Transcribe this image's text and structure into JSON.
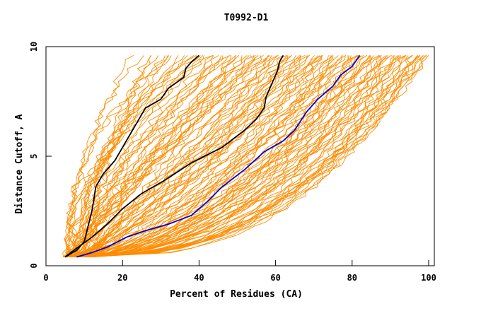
{
  "chart_data": {
    "type": "line",
    "title": "T0992-D1",
    "xlabel": "Percent of Residues (CA)",
    "ylabel": "Distance Cutoff, A",
    "xlim": [
      0,
      100
    ],
    "ylim": [
      0,
      10
    ],
    "x_ticks": [
      "0",
      "20",
      "40",
      "60",
      "80",
      "100"
    ],
    "y_ticks": [
      "0",
      "5",
      "10"
    ],
    "grid": false,
    "legend": "none",
    "colors": {
      "background_models": "#ff8c00",
      "highlight_1": "#000000",
      "highlight_2": "#000000",
      "highlight_3": "#0000cc"
    },
    "background_models": {
      "count": 120,
      "start_x_range": [
        5,
        12
      ],
      "end_x_range": [
        22,
        100
      ],
      "y_start": 0.4,
      "y_end": 9.6
    },
    "series": [
      {
        "color": "#000000",
        "points": [
          [
            5,
            0.4
          ],
          [
            8,
            0.7
          ],
          [
            10,
            1.1
          ],
          [
            11,
            1.8
          ],
          [
            12,
            2.5
          ],
          [
            12.5,
            3.0
          ],
          [
            13,
            3.6
          ],
          [
            15,
            4.2
          ],
          [
            18,
            4.8
          ],
          [
            20,
            5.4
          ],
          [
            22,
            6.0
          ],
          [
            24,
            6.6
          ],
          [
            26,
            7.2
          ],
          [
            30,
            7.6
          ],
          [
            32,
            8.1
          ],
          [
            36,
            8.6
          ],
          [
            36.5,
            9.0
          ],
          [
            38,
            9.3
          ],
          [
            40,
            9.6
          ]
        ]
      },
      {
        "color": "#000000",
        "points": [
          [
            5,
            0.4
          ],
          [
            8,
            0.8
          ],
          [
            12,
            1.3
          ],
          [
            16,
            1.9
          ],
          [
            20,
            2.6
          ],
          [
            25,
            3.3
          ],
          [
            31,
            3.9
          ],
          [
            38,
            4.7
          ],
          [
            46,
            5.4
          ],
          [
            52,
            6.2
          ],
          [
            55,
            6.7
          ],
          [
            57,
            7.2
          ],
          [
            57.5,
            7.7
          ],
          [
            59,
            8.3
          ],
          [
            60.5,
            8.9
          ],
          [
            61,
            9.3
          ],
          [
            62,
            9.6
          ]
        ]
      },
      {
        "color": "#0000cc",
        "points": [
          [
            8,
            0.4
          ],
          [
            12,
            0.6
          ],
          [
            16,
            0.85
          ],
          [
            21,
            1.3
          ],
          [
            26,
            1.6
          ],
          [
            32,
            1.9
          ],
          [
            38,
            2.3
          ],
          [
            42,
            2.9
          ],
          [
            46,
            3.6
          ],
          [
            52,
            4.4
          ],
          [
            57,
            5.2
          ],
          [
            62,
            5.7
          ],
          [
            65,
            6.2
          ],
          [
            68,
            7.0
          ],
          [
            71,
            7.6
          ],
          [
            75,
            8.2
          ],
          [
            77,
            8.7
          ],
          [
            80,
            9.1
          ],
          [
            82,
            9.6
          ]
        ]
      }
    ]
  }
}
